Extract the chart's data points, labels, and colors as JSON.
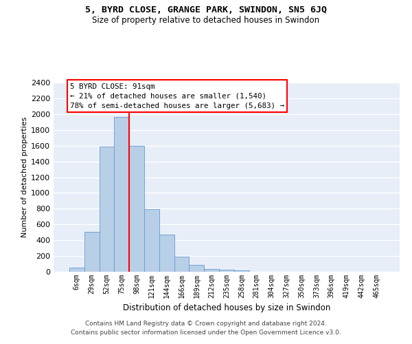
{
  "title": "5, BYRD CLOSE, GRANGE PARK, SWINDON, SN5 6JQ",
  "subtitle": "Size of property relative to detached houses in Swindon",
  "xlabel": "Distribution of detached houses by size in Swindon",
  "ylabel": "Number of detached properties",
  "bar_color": "#b8cfe8",
  "bar_edge_color": "#6699cc",
  "categories": [
    "6sqm",
    "29sqm",
    "52sqm",
    "75sqm",
    "98sqm",
    "121sqm",
    "144sqm",
    "166sqm",
    "189sqm",
    "212sqm",
    "235sqm",
    "258sqm",
    "281sqm",
    "304sqm",
    "327sqm",
    "350sqm",
    "373sqm",
    "396sqm",
    "419sqm",
    "442sqm",
    "465sqm"
  ],
  "values": [
    55,
    510,
    1590,
    1960,
    1600,
    795,
    475,
    195,
    90,
    35,
    25,
    20,
    0,
    0,
    0,
    0,
    0,
    0,
    0,
    0,
    0
  ],
  "annotation_title": "5 BYRD CLOSE: 91sqm",
  "annotation_line1": "← 21% of detached houses are smaller (1,540)",
  "annotation_line2": "78% of semi-detached houses are larger (5,683) →",
  "red_line_x": 3.5,
  "ylim_min": 0,
  "ylim_max": 2400,
  "yticks": [
    0,
    200,
    400,
    600,
    800,
    1000,
    1200,
    1400,
    1600,
    1800,
    2000,
    2200,
    2400
  ],
  "background_color": "#e8eef8",
  "footer_line1": "Contains HM Land Registry data © Crown copyright and database right 2024.",
  "footer_line2": "Contains public sector information licensed under the Open Government Licence v3.0."
}
